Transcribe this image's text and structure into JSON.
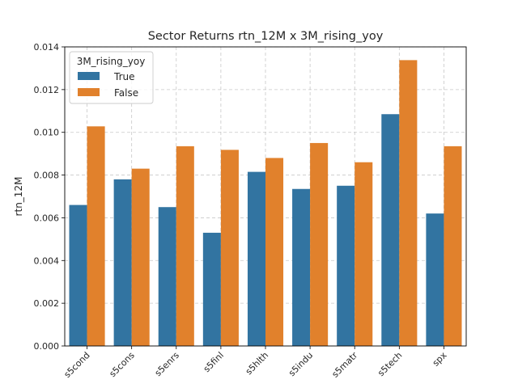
{
  "chart_data": {
    "type": "bar",
    "title": "Sector Returns rtn_12M x 3M_rising_yoy",
    "xlabel": "",
    "ylabel": "rtn_12M",
    "categories": [
      "s5cond",
      "s5cons",
      "s5enrs",
      "s5finl",
      "s5hlth",
      "s5indu",
      "s5matr",
      "s5tech",
      "spx"
    ],
    "series": [
      {
        "name": "True",
        "values": [
          0.0066,
          0.0078,
          0.0065,
          0.0053,
          0.00815,
          0.00735,
          0.0075,
          0.01085,
          0.0062
        ],
        "color": "#3274a1"
      },
      {
        "name": "False",
        "values": [
          0.01028,
          0.0083,
          0.00935,
          0.00918,
          0.0088,
          0.0095,
          0.0086,
          0.01338,
          0.00935
        ],
        "color": "#e1812c"
      }
    ],
    "ylim": [
      0,
      0.014
    ],
    "yticks": [
      "0.000",
      "0.002",
      "0.004",
      "0.006",
      "0.008",
      "0.010",
      "0.012",
      "0.014"
    ],
    "grid": true,
    "legend": {
      "title": "3M_rising_yoy",
      "placement": "top-left"
    }
  }
}
